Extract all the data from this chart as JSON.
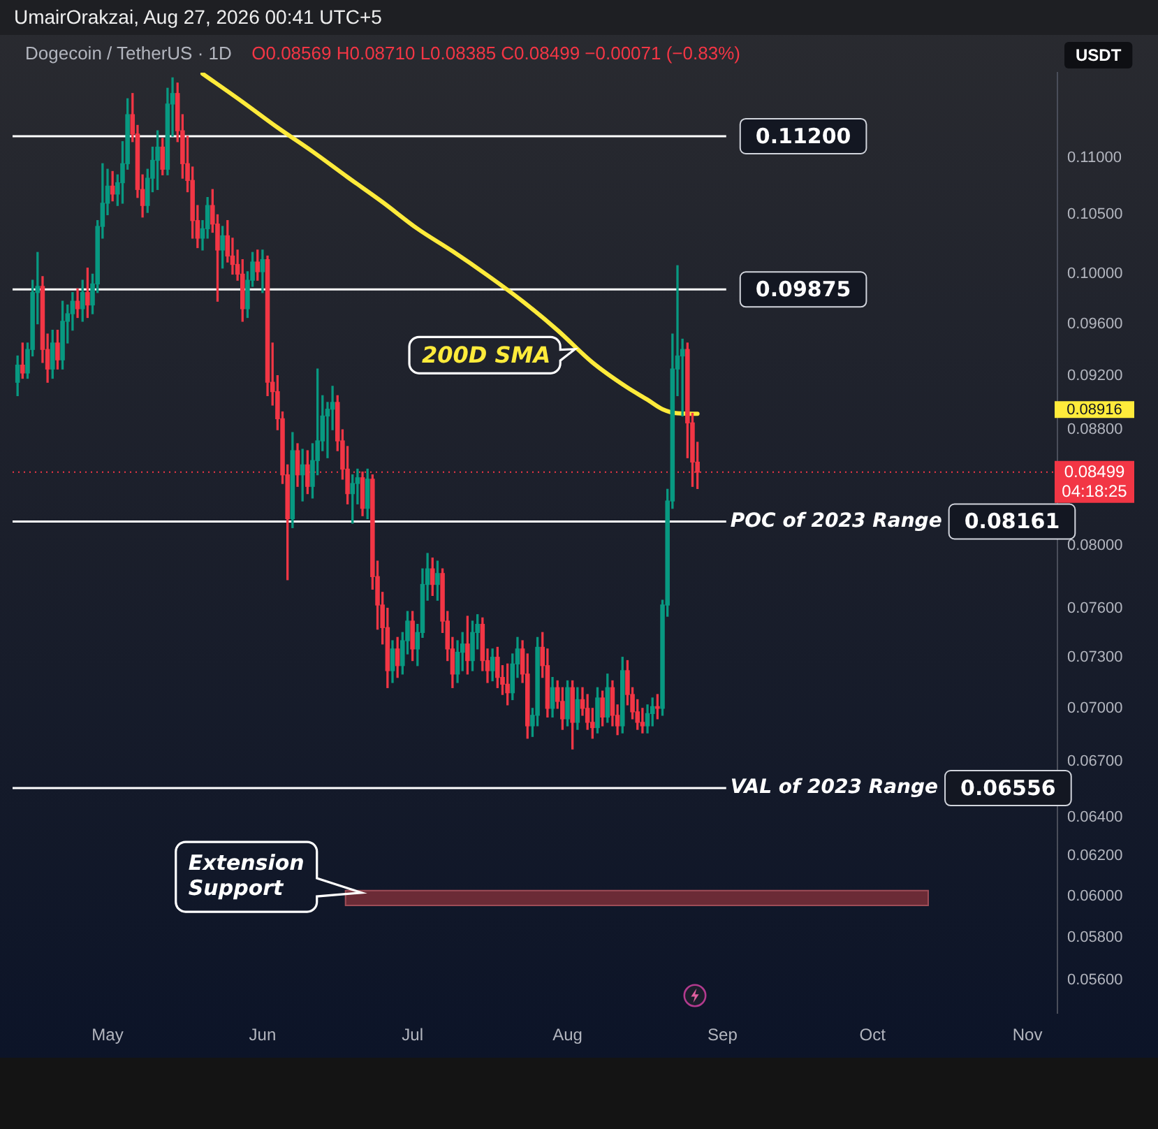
{
  "chart_data": {
    "type": "candlestick",
    "title": "Dogecoin / TetherUS · 1D",
    "subtitle": "O0.08569 H0.08710 L0.08385 C0.08499 −0.00071 (−0.83%)",
    "ylabel": "USDT",
    "annotations": [
      "UmairOrakzai, Aug 27, 2026 00:41 UTC+5",
      "04:18:25",
      "0.08916"
    ],
    "xlim": [
      "--04-12",
      "--11-07"
    ],
    "xticks": [
      {
        "value": "--05-01",
        "label": "May"
      },
      {
        "value": "--06-01",
        "label": "Jun"
      },
      {
        "value": "--07-01",
        "label": "Jul"
      },
      {
        "value": "--08-01",
        "label": "Aug"
      },
      {
        "value": "--09-01",
        "label": "Sep"
      },
      {
        "value": "--10-01",
        "label": "Oct"
      },
      {
        "value": "--11-01",
        "label": "Nov"
      }
    ],
    "ylim": [
      0.0545,
      0.118
    ],
    "yticks": [
      {
        "value": 0.056,
        "label": "0.05600"
      },
      {
        "value": 0.058,
        "label": "0.05800"
      },
      {
        "value": 0.06,
        "label": "0.06000"
      },
      {
        "value": 0.062,
        "label": "0.06200"
      },
      {
        "value": 0.064,
        "label": "0.06400"
      },
      {
        "value": 0.067,
        "label": "0.06700"
      },
      {
        "value": 0.07,
        "label": "0.07000"
      },
      {
        "value": 0.073,
        "label": "0.07300"
      },
      {
        "value": 0.076,
        "label": "0.07600"
      },
      {
        "value": 0.08,
        "label": "0.08000"
      },
      {
        "value": 0.088,
        "label": "0.08800"
      },
      {
        "value": 0.092,
        "label": "0.09200"
      },
      {
        "value": 0.096,
        "label": "0.09600"
      },
      {
        "value": 0.1,
        "label": "0.10000"
      },
      {
        "value": 0.105,
        "label": "0.10500"
      },
      {
        "value": 0.11,
        "label": "0.11000"
      }
    ],
    "log": true,
    "ref_lines": [
      {
        "axis": "y",
        "value": 0.112,
        "label": "0.11200",
        "color": "#ffffff",
        "line_style": "solid"
      },
      {
        "axis": "y",
        "value": 0.09875,
        "label": "0.09875",
        "color": "#ffffff",
        "line_style": "solid"
      },
      {
        "axis": "y",
        "value": 0.08161,
        "label": "POC of 2023 Range 0.08161",
        "color": "#ffffff",
        "line_style": "solid"
      },
      {
        "axis": "y",
        "value": 0.06556,
        "label": "VAL of 2023 Range 0.06556",
        "color": "#ffffff",
        "line_style": "solid"
      },
      {
        "axis": "y",
        "value": 0.08499,
        "label": "0.08499",
        "color": "#f23645",
        "line_style": "dotted"
      }
    ],
    "bands": [
      {
        "axis": "y",
        "from": 0.0595,
        "to": 0.0603,
        "label": "Extension Support",
        "color": "#6b2b36"
      }
    ],
    "series": [
      {
        "x": [
          "--04-13",
          "--04-14",
          "--04-15",
          "--04-16",
          "--04-17",
          "--04-18",
          "--04-19",
          "--04-20",
          "--04-21",
          "--04-22",
          "--04-23",
          "--04-24",
          "--04-25",
          "--04-26",
          "--04-27",
          "--04-28",
          "--04-29",
          "--04-30",
          "--05-01",
          "--05-02",
          "--05-03",
          "--05-04",
          "--05-05",
          "--05-06",
          "--05-07",
          "--05-08",
          "--05-09",
          "--05-10",
          "--05-11",
          "--05-12",
          "--05-13",
          "--05-14",
          "--05-15",
          "--05-16",
          "--05-17",
          "--05-18",
          "--05-19",
          "--05-20",
          "--05-21",
          "--05-22",
          "--05-23",
          "--05-24",
          "--05-25",
          "--05-26",
          "--05-27",
          "--05-28",
          "--05-29",
          "--05-30",
          "--05-31",
          "--06-01",
          "--06-02",
          "--06-03",
          "--06-04",
          "--06-05",
          "--06-06",
          "--06-07",
          "--06-08",
          "--06-09",
          "--06-10",
          "--06-11",
          "--06-12",
          "--06-13",
          "--06-14",
          "--06-15",
          "--06-16",
          "--06-17",
          "--06-18",
          "--06-19",
          "--06-20",
          "--06-21",
          "--06-22",
          "--06-23",
          "--06-24",
          "--06-25",
          "--06-26",
          "--06-27",
          "--06-28",
          "--06-29",
          "--06-30",
          "--07-01",
          "--07-02",
          "--07-03",
          "--07-04",
          "--07-05",
          "--07-06",
          "--07-07",
          "--07-08",
          "--07-09",
          "--07-10",
          "--07-11",
          "--07-12",
          "--07-13",
          "--07-14",
          "--07-15",
          "--07-16",
          "--07-17",
          "--07-18",
          "--07-19",
          "--07-20",
          "--07-21",
          "--07-22",
          "--07-23",
          "--07-24",
          "--07-25",
          "--07-26",
          "--07-27",
          "--07-28",
          "--07-29",
          "--07-30",
          "--07-31",
          "--08-01",
          "--08-02",
          "--08-03",
          "--08-04",
          "--08-05",
          "--08-06",
          "--08-07",
          "--08-08",
          "--08-09",
          "--08-10",
          "--08-11",
          "--08-12",
          "--08-13",
          "--08-14",
          "--08-15",
          "--08-16",
          "--08-17",
          "--08-18",
          "--08-19",
          "--08-20",
          "--08-21",
          "--08-22",
          "--08-23",
          "--08-24",
          "--08-25",
          "--08-26",
          "--08-27"
        ],
        "ohlc": [
          [
            0.0915,
            0.0935,
            0.0905,
            0.0928
          ],
          [
            0.0928,
            0.0945,
            0.0918,
            0.0922
          ],
          [
            0.0922,
            0.0945,
            0.0918,
            0.094
          ],
          [
            0.094,
            0.0995,
            0.0935,
            0.0985
          ],
          [
            0.0985,
            0.1018,
            0.096,
            0.099
          ],
          [
            0.099,
            0.0998,
            0.093,
            0.094
          ],
          [
            0.094,
            0.0952,
            0.0915,
            0.0925
          ],
          [
            0.0925,
            0.0955,
            0.0918,
            0.0945
          ],
          [
            0.0945,
            0.0955,
            0.0925,
            0.0932
          ],
          [
            0.0932,
            0.0978,
            0.0925,
            0.0962
          ],
          [
            0.0962,
            0.0975,
            0.0945,
            0.0968
          ],
          [
            0.0968,
            0.0985,
            0.0955,
            0.0978
          ],
          [
            0.0978,
            0.0988,
            0.0965,
            0.0972
          ],
          [
            0.0972,
            0.0995,
            0.0962,
            0.0985
          ],
          [
            0.0985,
            0.1005,
            0.0965,
            0.0975
          ],
          [
            0.0975,
            0.1,
            0.0968,
            0.0992
          ],
          [
            0.0992,
            0.1045,
            0.0985,
            0.104
          ],
          [
            0.104,
            0.1095,
            0.103,
            0.106
          ],
          [
            0.106,
            0.109,
            0.105,
            0.1075
          ],
          [
            0.1075,
            0.1088,
            0.1062,
            0.1068
          ],
          [
            0.1068,
            0.1085,
            0.1058,
            0.1078
          ],
          [
            0.1078,
            0.1115,
            0.106,
            0.1095
          ],
          [
            0.1095,
            0.1155,
            0.109,
            0.114
          ],
          [
            0.114,
            0.116,
            0.1115,
            0.1122
          ],
          [
            0.1122,
            0.113,
            0.1065,
            0.1072
          ],
          [
            0.1072,
            0.1085,
            0.1048,
            0.1058
          ],
          [
            0.1058,
            0.109,
            0.1052,
            0.1082
          ],
          [
            0.1082,
            0.111,
            0.107,
            0.1098
          ],
          [
            0.1098,
            0.1125,
            0.1072,
            0.111
          ],
          [
            0.111,
            0.1118,
            0.1085,
            0.109
          ],
          [
            0.109,
            0.1165,
            0.1085,
            0.115
          ],
          [
            0.115,
            0.1175,
            0.112,
            0.116
          ],
          [
            0.116,
            0.117,
            0.1115,
            0.1125
          ],
          [
            0.1125,
            0.114,
            0.1082,
            0.1095
          ],
          [
            0.1095,
            0.112,
            0.107,
            0.108
          ],
          [
            0.108,
            0.1092,
            0.103,
            0.1045
          ],
          [
            0.1045,
            0.1058,
            0.1022,
            0.103
          ],
          [
            0.103,
            0.1045,
            0.102,
            0.1038
          ],
          [
            0.1038,
            0.1065,
            0.103,
            0.1058
          ],
          [
            0.1058,
            0.1072,
            0.1035,
            0.1042
          ],
          [
            0.1042,
            0.105,
            0.0978,
            0.102
          ],
          [
            0.102,
            0.104,
            0.1005,
            0.1032
          ],
          [
            0.1032,
            0.1045,
            0.101,
            0.1015
          ],
          [
            0.1015,
            0.103,
            0.1,
            0.1008
          ],
          [
            0.1008,
            0.102,
            0.0995,
            0.1
          ],
          [
            0.1,
            0.1012,
            0.0962,
            0.0972
          ],
          [
            0.0972,
            0.1002,
            0.0965,
            0.0995
          ],
          [
            0.0995,
            0.1018,
            0.099,
            0.101
          ],
          [
            0.101,
            0.102,
            0.0995,
            0.1002
          ],
          [
            0.1002,
            0.102,
            0.0985,
            0.1012
          ],
          [
            0.1012,
            0.1015,
            0.0905,
            0.0915
          ],
          [
            0.0915,
            0.0945,
            0.0898,
            0.0908
          ],
          [
            0.0908,
            0.092,
            0.088,
            0.0888
          ],
          [
            0.0888,
            0.0893,
            0.0842,
            0.0848
          ],
          [
            0.0848,
            0.0855,
            0.0778,
            0.0818
          ],
          [
            0.0818,
            0.0878,
            0.0812,
            0.0865
          ],
          [
            0.0865,
            0.087,
            0.084,
            0.0848
          ],
          [
            0.0848,
            0.0866,
            0.083,
            0.0855
          ],
          [
            0.0855,
            0.0865,
            0.0835,
            0.084
          ],
          [
            0.084,
            0.087,
            0.0832,
            0.0858
          ],
          [
            0.0858,
            0.0925,
            0.0848,
            0.0872
          ],
          [
            0.0872,
            0.0905,
            0.0865,
            0.089
          ],
          [
            0.089,
            0.09,
            0.086,
            0.0895
          ],
          [
            0.0895,
            0.0912,
            0.088,
            0.09
          ],
          [
            0.09,
            0.0905,
            0.0865,
            0.0872
          ],
          [
            0.0872,
            0.088,
            0.0845,
            0.0852
          ],
          [
            0.0852,
            0.0868,
            0.0828,
            0.0835
          ],
          [
            0.0835,
            0.0848,
            0.0815,
            0.0842
          ],
          [
            0.0842,
            0.0852,
            0.0828,
            0.0846
          ],
          [
            0.0846,
            0.085,
            0.082,
            0.0825
          ],
          [
            0.0825,
            0.0852,
            0.0818,
            0.0845
          ],
          [
            0.0845,
            0.0848,
            0.0772,
            0.078
          ],
          [
            0.078,
            0.079,
            0.0747,
            0.0762
          ],
          [
            0.0762,
            0.077,
            0.0738,
            0.0748
          ],
          [
            0.0748,
            0.076,
            0.0712,
            0.0722
          ],
          [
            0.0722,
            0.074,
            0.0715,
            0.0735
          ],
          [
            0.0735,
            0.0742,
            0.0718,
            0.0725
          ],
          [
            0.0725,
            0.0745,
            0.072,
            0.074
          ],
          [
            0.074,
            0.0758,
            0.0732,
            0.0752
          ],
          [
            0.0752,
            0.0758,
            0.0728,
            0.0735
          ],
          [
            0.0735,
            0.075,
            0.0725,
            0.0745
          ],
          [
            0.0745,
            0.0785,
            0.0742,
            0.0775
          ],
          [
            0.0775,
            0.0795,
            0.0765,
            0.0785
          ],
          [
            0.0785,
            0.0792,
            0.0768,
            0.0775
          ],
          [
            0.0775,
            0.079,
            0.0765,
            0.0782
          ],
          [
            0.0782,
            0.0785,
            0.0745,
            0.0752
          ],
          [
            0.0752,
            0.0758,
            0.0728,
            0.0735
          ],
          [
            0.0735,
            0.0742,
            0.0712,
            0.072
          ],
          [
            0.072,
            0.074,
            0.0715,
            0.0733
          ],
          [
            0.0733,
            0.0745,
            0.0722,
            0.0738
          ],
          [
            0.0738,
            0.0755,
            0.072,
            0.0728
          ],
          [
            0.0728,
            0.0752,
            0.0722,
            0.0745
          ],
          [
            0.0745,
            0.0756,
            0.0735,
            0.075
          ],
          [
            0.075,
            0.0754,
            0.0722,
            0.0728
          ],
          [
            0.0728,
            0.0735,
            0.0715,
            0.0722
          ],
          [
            0.0722,
            0.0735,
            0.0716,
            0.073
          ],
          [
            0.073,
            0.0736,
            0.0712,
            0.0718
          ],
          [
            0.0718,
            0.0725,
            0.0708,
            0.0714
          ],
          [
            0.0714,
            0.0726,
            0.0702,
            0.0709
          ],
          [
            0.0709,
            0.0732,
            0.0705,
            0.0726
          ],
          [
            0.0726,
            0.0742,
            0.0718,
            0.0735
          ],
          [
            0.0735,
            0.074,
            0.0715,
            0.072
          ],
          [
            0.072,
            0.0732,
            0.0683,
            0.069
          ],
          [
            0.069,
            0.07,
            0.0684,
            0.0696
          ],
          [
            0.0696,
            0.0742,
            0.069,
            0.0736
          ],
          [
            0.0736,
            0.0745,
            0.0718,
            0.0725
          ],
          [
            0.0725,
            0.0735,
            0.0695,
            0.07
          ],
          [
            0.07,
            0.0718,
            0.0695,
            0.0712
          ],
          [
            0.0712,
            0.0716,
            0.07,
            0.0704
          ],
          [
            0.0704,
            0.0712,
            0.0688,
            0.0694
          ],
          [
            0.0694,
            0.0716,
            0.069,
            0.0712
          ],
          [
            0.0712,
            0.0716,
            0.0677,
            0.0692
          ],
          [
            0.0692,
            0.0712,
            0.0688,
            0.0705
          ],
          [
            0.0705,
            0.0712,
            0.0696,
            0.07
          ],
          [
            0.07,
            0.0708,
            0.0688,
            0.0692
          ],
          [
            0.0692,
            0.07,
            0.0683,
            0.0689
          ],
          [
            0.0689,
            0.0712,
            0.0686,
            0.0706
          ],
          [
            0.0706,
            0.071,
            0.069,
            0.0695
          ],
          [
            0.0695,
            0.072,
            0.0692,
            0.0712
          ],
          [
            0.0712,
            0.0716,
            0.069,
            0.0696
          ],
          [
            0.0696,
            0.0702,
            0.0685,
            0.069
          ],
          [
            0.069,
            0.073,
            0.0686,
            0.0722
          ],
          [
            0.0722,
            0.0728,
            0.0702,
            0.0708
          ],
          [
            0.0708,
            0.0712,
            0.0694,
            0.0698
          ],
          [
            0.0698,
            0.0705,
            0.0688,
            0.0692
          ],
          [
            0.0692,
            0.07,
            0.0686,
            0.069
          ],
          [
            0.069,
            0.0702,
            0.0686,
            0.0697
          ],
          [
            0.0697,
            0.0706,
            0.069,
            0.0701
          ],
          [
            0.0701,
            0.0708,
            0.0694,
            0.07
          ],
          [
            0.07,
            0.0765,
            0.0696,
            0.0762
          ],
          [
            0.0762,
            0.0838,
            0.0755,
            0.083
          ],
          [
            0.083,
            0.0952,
            0.0825,
            0.0925
          ],
          [
            0.0925,
            0.1007,
            0.0905,
            0.0935
          ],
          [
            0.0935,
            0.0948,
            0.089,
            0.094
          ],
          [
            0.094,
            0.0945,
            0.086,
            0.0885
          ],
          [
            0.0885,
            0.0892,
            0.084,
            0.0857
          ],
          [
            0.08569,
            0.0871,
            0.08385,
            0.08499
          ]
        ],
        "colors": [
          "#089981",
          "#f23645",
          "#089981",
          "#089981",
          "#089981",
          "#f23645",
          "#f23645",
          "#089981",
          "#f23645",
          "#089981",
          "#089981",
          "#089981",
          "#f23645",
          "#089981",
          "#f23645",
          "#089981",
          "#089981",
          "#089981",
          "#089981",
          "#f23645",
          "#089981",
          "#089981",
          "#089981",
          "#f23645",
          "#f23645",
          "#f23645",
          "#089981",
          "#089981",
          "#089981",
          "#f23645",
          "#089981",
          "#089981",
          "#f23645",
          "#f23645",
          "#f23645",
          "#f23645",
          "#f23645",
          "#089981",
          "#089981",
          "#f23645",
          "#f23645",
          "#089981",
          "#f23645",
          "#f23645",
          "#f23645",
          "#f23645",
          "#089981",
          "#089981",
          "#f23645",
          "#089981",
          "#f23645",
          "#f23645",
          "#f23645",
          "#f23645",
          "#f23645",
          "#089981",
          "#f23645",
          "#089981",
          "#f23645",
          "#089981",
          "#089981",
          "#089981",
          "#089981",
          "#089981",
          "#f23645",
          "#f23645",
          "#f23645",
          "#089981",
          "#089981",
          "#f23645",
          "#089981",
          "#f23645",
          "#f23645",
          "#f23645",
          "#f23645",
          "#089981",
          "#f23645",
          "#089981",
          "#089981",
          "#f23645",
          "#089981",
          "#089981",
          "#089981",
          "#f23645",
          "#089981",
          "#f23645",
          "#f23645",
          "#f23645",
          "#089981",
          "#089981",
          "#f23645",
          "#089981",
          "#089981",
          "#f23645",
          "#f23645",
          "#089981",
          "#f23645",
          "#f23645",
          "#f23645",
          "#089981",
          "#089981",
          "#f23645",
          "#f23645",
          "#089981",
          "#089981",
          "#f23645",
          "#f23645",
          "#089981",
          "#f23645",
          "#f23645",
          "#089981",
          "#f23645",
          "#089981",
          "#f23645",
          "#f23645",
          "#f23645",
          "#089981",
          "#f23645",
          "#089981",
          "#f23645",
          "#f23645",
          "#089981",
          "#f23645",
          "#f23645",
          "#f23645",
          "#f23645",
          "#089981",
          "#089981",
          "#f23645",
          "#089981",
          "#089981",
          "#089981",
          "#089981",
          "#089981",
          "#f23645",
          "#f23645",
          "#f23645"
        ]
      },
      {
        "type": "line",
        "name": "200D SMA",
        "color": "#ffeb3b",
        "x": [
          "--05-20",
          "--05-28",
          "--06-04",
          "--06-11",
          "--06-18",
          "--06-25",
          "--07-02",
          "--07-09",
          "--07-16",
          "--07-23",
          "--07-30",
          "--08-06",
          "--08-13",
          "--08-17",
          "--08-20",
          "--08-23",
          "--08-27"
        ],
        "values": [
          0.1179,
          0.1152,
          0.1128,
          0.1106,
          0.1083,
          0.1061,
          0.1038,
          0.1019,
          0.0999,
          0.0978,
          0.0955,
          0.093,
          0.0911,
          0.0902,
          0.0895,
          0.0892,
          0.08916
        ]
      }
    ]
  }
}
